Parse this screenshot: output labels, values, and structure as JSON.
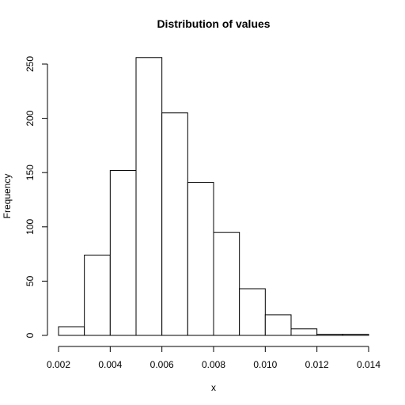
{
  "chart_data": {
    "type": "bar",
    "title": "Distribution of values",
    "xlabel": "x",
    "ylabel": "Frequency",
    "bins": [
      {
        "x0": 0.002,
        "x1": 0.003,
        "count": 8
      },
      {
        "x0": 0.003,
        "x1": 0.004,
        "count": 74
      },
      {
        "x0": 0.004,
        "x1": 0.005,
        "count": 152
      },
      {
        "x0": 0.005,
        "x1": 0.006,
        "count": 256
      },
      {
        "x0": 0.006,
        "x1": 0.007,
        "count": 205
      },
      {
        "x0": 0.007,
        "x1": 0.008,
        "count": 141
      },
      {
        "x0": 0.008,
        "x1": 0.009,
        "count": 95
      },
      {
        "x0": 0.009,
        "x1": 0.01,
        "count": 43
      },
      {
        "x0": 0.01,
        "x1": 0.011,
        "count": 19
      },
      {
        "x0": 0.011,
        "x1": 0.012,
        "count": 6
      },
      {
        "x0": 0.012,
        "x1": 0.013,
        "count": 1
      },
      {
        "x0": 0.013,
        "x1": 0.014,
        "count": 1
      }
    ],
    "xlim": [
      0.002,
      0.014
    ],
    "ylim": [
      0,
      250
    ],
    "x_ticks": [
      0.002,
      0.004,
      0.006,
      0.008,
      0.01,
      0.012,
      0.014
    ],
    "x_tick_labels": [
      "0.002",
      "0.004",
      "0.006",
      "0.008",
      "0.010",
      "0.012",
      "0.014"
    ],
    "y_ticks": [
      0,
      50,
      100,
      150,
      200,
      250
    ],
    "y_tick_labels": [
      "0",
      "50",
      "100",
      "150",
      "200",
      "250"
    ],
    "grid": false,
    "legend": "none",
    "colors": {
      "bar_fill": "#ffffff",
      "bar_stroke": "#000000",
      "axis": "#000000"
    }
  }
}
